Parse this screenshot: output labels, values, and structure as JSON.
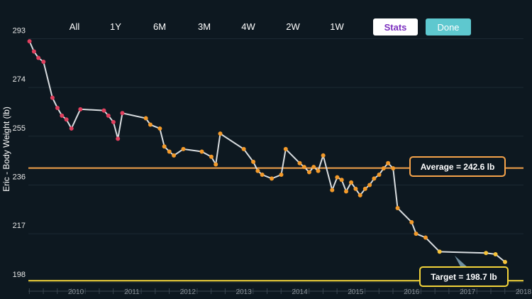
{
  "toolbar": {
    "ranges": [
      "All",
      "1Y",
      "6M",
      "3M",
      "4W",
      "2W",
      "1W"
    ],
    "stats_label": "Stats",
    "done_label": "Done"
  },
  "colors": {
    "background": "#0d1820",
    "line": "#d9dde0",
    "average": "#f5a34a",
    "target": "#f2d33a",
    "point_early": "#e0405e",
    "point_mid": "#f39a2a",
    "point_late": "#f6c33a",
    "stats_text": "#7b2fbf",
    "done_bg": "#5ec8cf"
  },
  "chart_data": {
    "type": "line",
    "ylabel": "Eric - Body Weight (lb)",
    "yticks": [
      198,
      217,
      236,
      255,
      274,
      293
    ],
    "ylim": [
      196,
      297
    ],
    "xlim": [
      2009.65,
      2018.5
    ],
    "xticks": [
      "2010",
      "2011",
      "2012",
      "2013",
      "2014",
      "2015",
      "2016",
      "2017",
      "2018"
    ],
    "average": {
      "label": "Average = 242.6 lb",
      "value": 242.6
    },
    "target": {
      "label": "Target = 198.7 lb",
      "value": 198.7
    },
    "series": [
      {
        "x": [
          2009.67,
          2009.75,
          2009.83,
          2009.92,
          2010.08,
          2010.17,
          2010.25,
          2010.33,
          2010.42,
          2010.58,
          2011.0,
          2011.08,
          2011.17,
          2011.25,
          2011.33,
          2011.75,
          2011.83,
          2012.0,
          2012.08,
          2012.17,
          2012.25,
          2012.42,
          2012.75,
          2012.92,
          2013.0,
          2013.08,
          2013.5,
          2013.67,
          2013.75,
          2013.83,
          2014.0,
          2014.17,
          2014.25,
          2014.5,
          2014.58,
          2014.67,
          2014.75,
          2014.83,
          2014.92,
          2015.08,
          2015.17,
          2015.25,
          2015.33,
          2015.42,
          2015.5,
          2015.58,
          2015.67,
          2015.75,
          2015.83,
          2015.92,
          2016.0,
          2016.08,
          2016.17,
          2016.25,
          2016.5,
          2016.58,
          2016.75,
          2017.0,
          2017.83,
          2018.0,
          2018.17
        ],
        "y": [
          292.0,
          288.0,
          285.5,
          284.0,
          270.0,
          266.0,
          263.0,
          261.5,
          258.0,
          265.5,
          265.0,
          263.0,
          260.5,
          254.0,
          264.0,
          262.0,
          259.5,
          258.0,
          251.0,
          249.0,
          247.5,
          250.0,
          249.0,
          247.0,
          244.0,
          256.0,
          250.0,
          245.0,
          241.5,
          240.0,
          238.5,
          240.0,
          250.0,
          244.5,
          243.0,
          241.0,
          243.0,
          241.5,
          247.5,
          234.0,
          239.0,
          238.0,
          233.5,
          237.0,
          234.5,
          232.0,
          234.5,
          236.0,
          238.5,
          240.0,
          242.5,
          244.5,
          242.5,
          227.0,
          221.5,
          217.0,
          215.5,
          210.0,
          209.5,
          209.0,
          206.0
        ]
      }
    ]
  }
}
